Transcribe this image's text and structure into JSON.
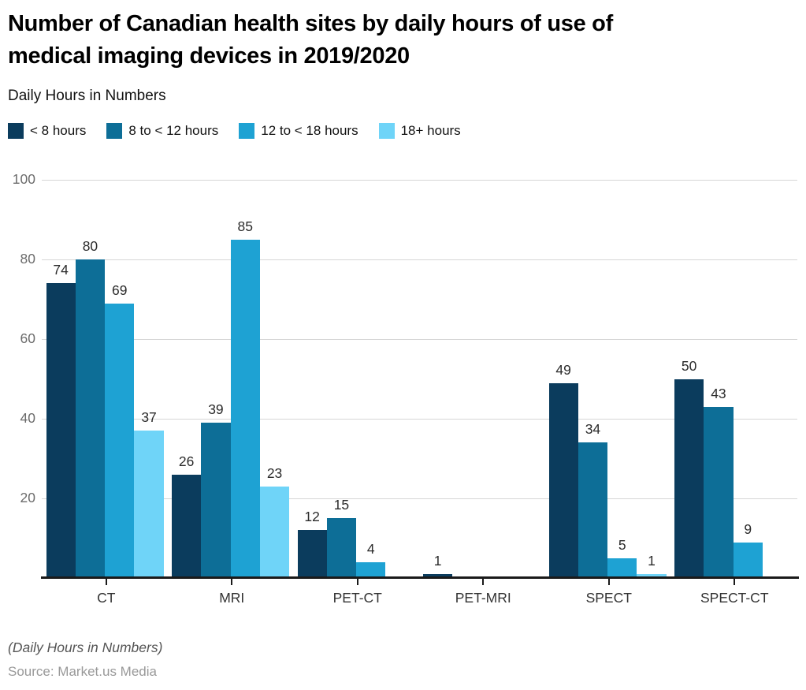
{
  "header": {
    "title_lines": {
      "0": "Number of Canadian health sites by daily hours of use of",
      "1": "medical imaging devices in 2019/2020"
    },
    "subtitle": "Daily Hours in Numbers"
  },
  "legend": [
    {
      "label": "< 8 hours",
      "color": "#0b3c5d",
      "pattern": "solid"
    },
    {
      "label": "8 to < 12 hours",
      "color": "#0d6e97",
      "pattern": "solid"
    },
    {
      "label": "12 to < 18 hours",
      "color": "#1ea2d3",
      "pattern": "solid"
    },
    {
      "label": "18+ hours",
      "color": "#6fd4f8",
      "pattern": "dots"
    }
  ],
  "chart_data": {
    "type": "bar",
    "title": "Number of Canadian health sites by daily hours of use of medical imaging devices in 2019/2020",
    "subtitle": "Daily Hours in Numbers",
    "categories": [
      "CT",
      "MRI",
      "PET-CT",
      "PET-MRI",
      "SPECT",
      "SPECT-CT"
    ],
    "series": [
      {
        "name": "< 8 hours",
        "color": "#0b3c5d",
        "pattern": "solid",
        "values": [
          74,
          26,
          12,
          1,
          49,
          50
        ]
      },
      {
        "name": "8 to < 12 hours",
        "color": "#0d6e97",
        "pattern": "solid",
        "values": [
          80,
          39,
          15,
          null,
          34,
          43
        ]
      },
      {
        "name": "12 to < 18 hours",
        "color": "#1ea2d3",
        "pattern": "solid",
        "values": [
          69,
          85,
          4,
          null,
          5,
          9
        ]
      },
      {
        "name": "18+ hours",
        "color": "#6fd4f8",
        "pattern": "dots",
        "values": [
          37,
          23,
          null,
          null,
          1,
          null
        ]
      }
    ],
    "ylabel": "",
    "xlabel": "",
    "ylim": [
      0,
      100
    ],
    "yticks": [
      20,
      40,
      60,
      80,
      100
    ],
    "grid": true,
    "legend_position": "top",
    "value_labels": true
  },
  "footer": {
    "note": "(Daily Hours in Numbers)",
    "source": "Source: Market.us Media"
  }
}
